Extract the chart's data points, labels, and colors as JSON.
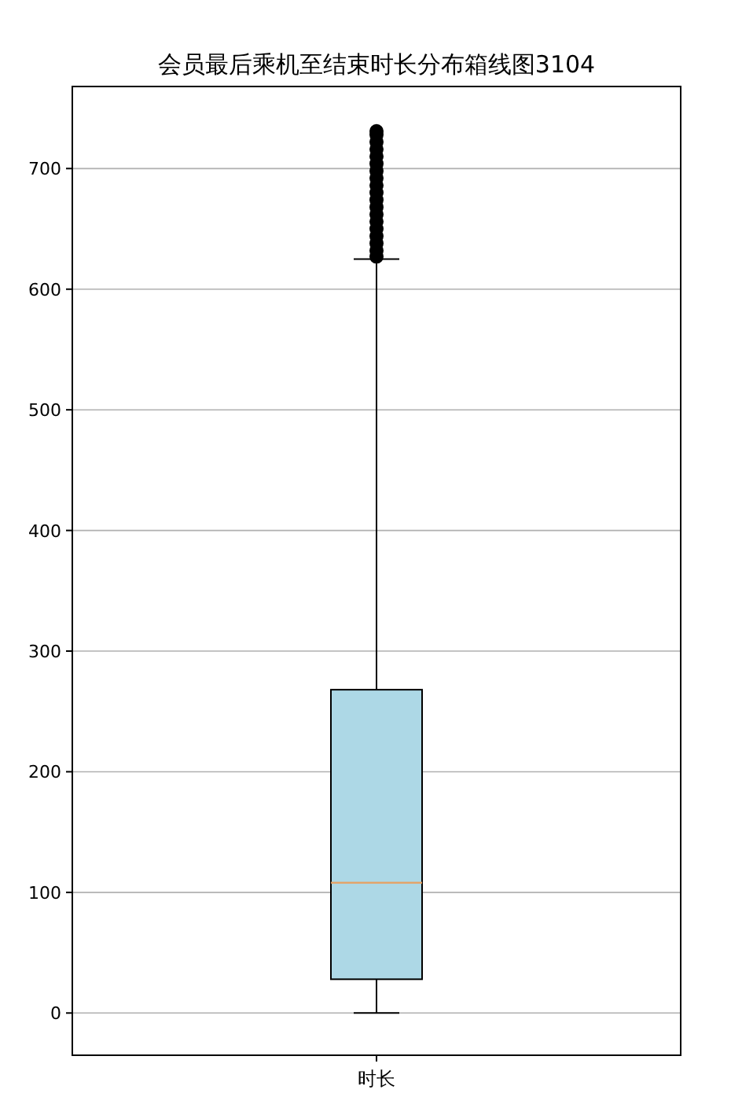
{
  "chart_data": {
    "type": "box",
    "title": "会员最后乘机至结束时长分布箱线图3104",
    "categories": [
      "时长"
    ],
    "boxes": [
      {
        "low": 0,
        "q1": 28,
        "median": 108,
        "q3": 268,
        "high": 625,
        "outliers": [
          627,
          632,
          638,
          644,
          650,
          656,
          662,
          668,
          674,
          680,
          686,
          692,
          698,
          704,
          710,
          716,
          722,
          728,
          731
        ]
      }
    ],
    "colors": [
      "#add8e6"
    ],
    "ylim": [
      -35,
      768
    ],
    "yticks": [
      0,
      100,
      200,
      300,
      400,
      500,
      600,
      700
    ],
    "grid": "y"
  }
}
